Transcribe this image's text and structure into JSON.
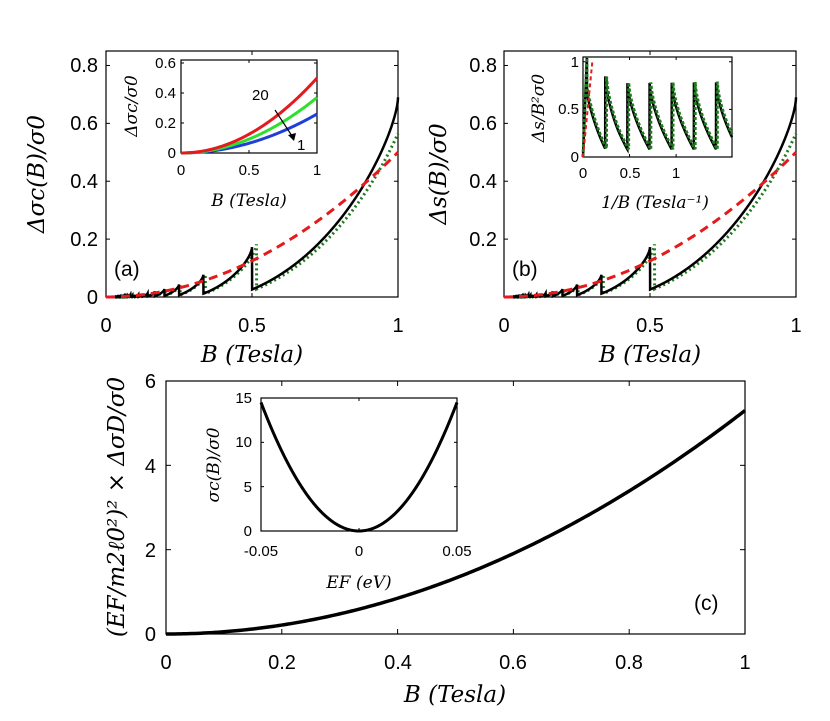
{
  "chart_data": [
    {
      "id": "a",
      "type": "line",
      "panel_label": "(a)",
      "xlabel": "B (Tesla)",
      "ylabel": "Δσc(B)/σ0",
      "xlim": [
        0,
        1
      ],
      "ylim": [
        0,
        0.85
      ],
      "xticks": [
        "0",
        "0.5",
        "1"
      ],
      "yticks": [
        "0",
        "0.2",
        "0.4",
        "0.6",
        "0.8"
      ],
      "smooth_coef": 0.5,
      "peak_coef": 0.69,
      "series": [
        {
          "name": "oscillating (solid)",
          "color": "#000000",
          "style": "solid"
        },
        {
          "name": "oscillating (dotted)",
          "color": "#1f7a1f",
          "style": "dotted"
        },
        {
          "name": "average (dashed)",
          "color": "#e41a1c",
          "style": "dashed"
        }
      ],
      "inset": {
        "xlabel": "B (Tesla)",
        "ylabel": "Δσc/σ0",
        "xlim": [
          0,
          1
        ],
        "ylim": [
          0,
          0.62
        ],
        "xticks": [
          "0",
          "0.5",
          "1"
        ],
        "yticks": [
          "0",
          "0.2",
          "0.4",
          "0.6"
        ],
        "annotation_top": "20",
        "annotation_bottom": "1",
        "series": [
          {
            "name": "20",
            "color": "#e41a1c",
            "coef": 0.5
          },
          {
            "name": "mid",
            "color": "#2ee02e",
            "coef": 0.37
          },
          {
            "name": "1",
            "color": "#1f3fd6",
            "coef": 0.26
          }
        ]
      }
    },
    {
      "id": "b",
      "type": "line",
      "panel_label": "(b)",
      "xlabel": "B (Tesla)",
      "ylabel": "Δs(B)/σ0",
      "xlim": [
        0,
        1
      ],
      "ylim": [
        0,
        0.85
      ],
      "xticks": [
        "0",
        "0.5",
        "1"
      ],
      "yticks": [
        "0.2",
        "0.4",
        "0.6",
        "0.8"
      ],
      "smooth_coef": 0.5,
      "peak_coef": 0.69,
      "series": [
        {
          "name": "oscillating (solid)",
          "color": "#000000",
          "style": "solid"
        },
        {
          "name": "oscillating (dotted)",
          "color": "#1f7a1f",
          "style": "dotted"
        },
        {
          "name": "average (dashed)",
          "color": "#e41a1c",
          "style": "dashed"
        }
      ],
      "inset": {
        "xlabel": "1/B (Tesla⁻¹)",
        "ylabel": "Δs/B²σ0",
        "xlim": [
          0,
          1.6
        ],
        "ylim": [
          0,
          1.05
        ],
        "xticks": [
          "0",
          "0.5",
          "1"
        ],
        "xtick_values": [
          0,
          0.5,
          1
        ],
        "yticks": [
          "0",
          "0.5",
          "1"
        ]
      }
    },
    {
      "id": "c",
      "type": "line",
      "panel_label": "(c)",
      "xlabel": "B (Tesla)",
      "ylabel": "(EF/m2ℓ0²)² × ΔσD/σ0",
      "xlim": [
        0,
        1
      ],
      "ylim": [
        0,
        6
      ],
      "xticks": [
        "0",
        "0.2",
        "0.4",
        "0.6",
        "0.8",
        "1"
      ],
      "yticks": [
        "0",
        "2",
        "4",
        "6"
      ],
      "curve": {
        "type": "quadratic",
        "coef": 5.3,
        "color": "#000000"
      },
      "inset": {
        "xlabel": "EF (eV)",
        "ylabel": "σc(B)/σ0",
        "xlim": [
          -0.05,
          0.05
        ],
        "ylim": [
          0,
          15
        ],
        "xticks": [
          "-0.05",
          "0",
          "0.05"
        ],
        "yticks": [
          "0",
          "5",
          "10",
          "15"
        ],
        "curve": {
          "type": "quadratic",
          "coef": 5800,
          "color": "#000000"
        }
      }
    }
  ]
}
